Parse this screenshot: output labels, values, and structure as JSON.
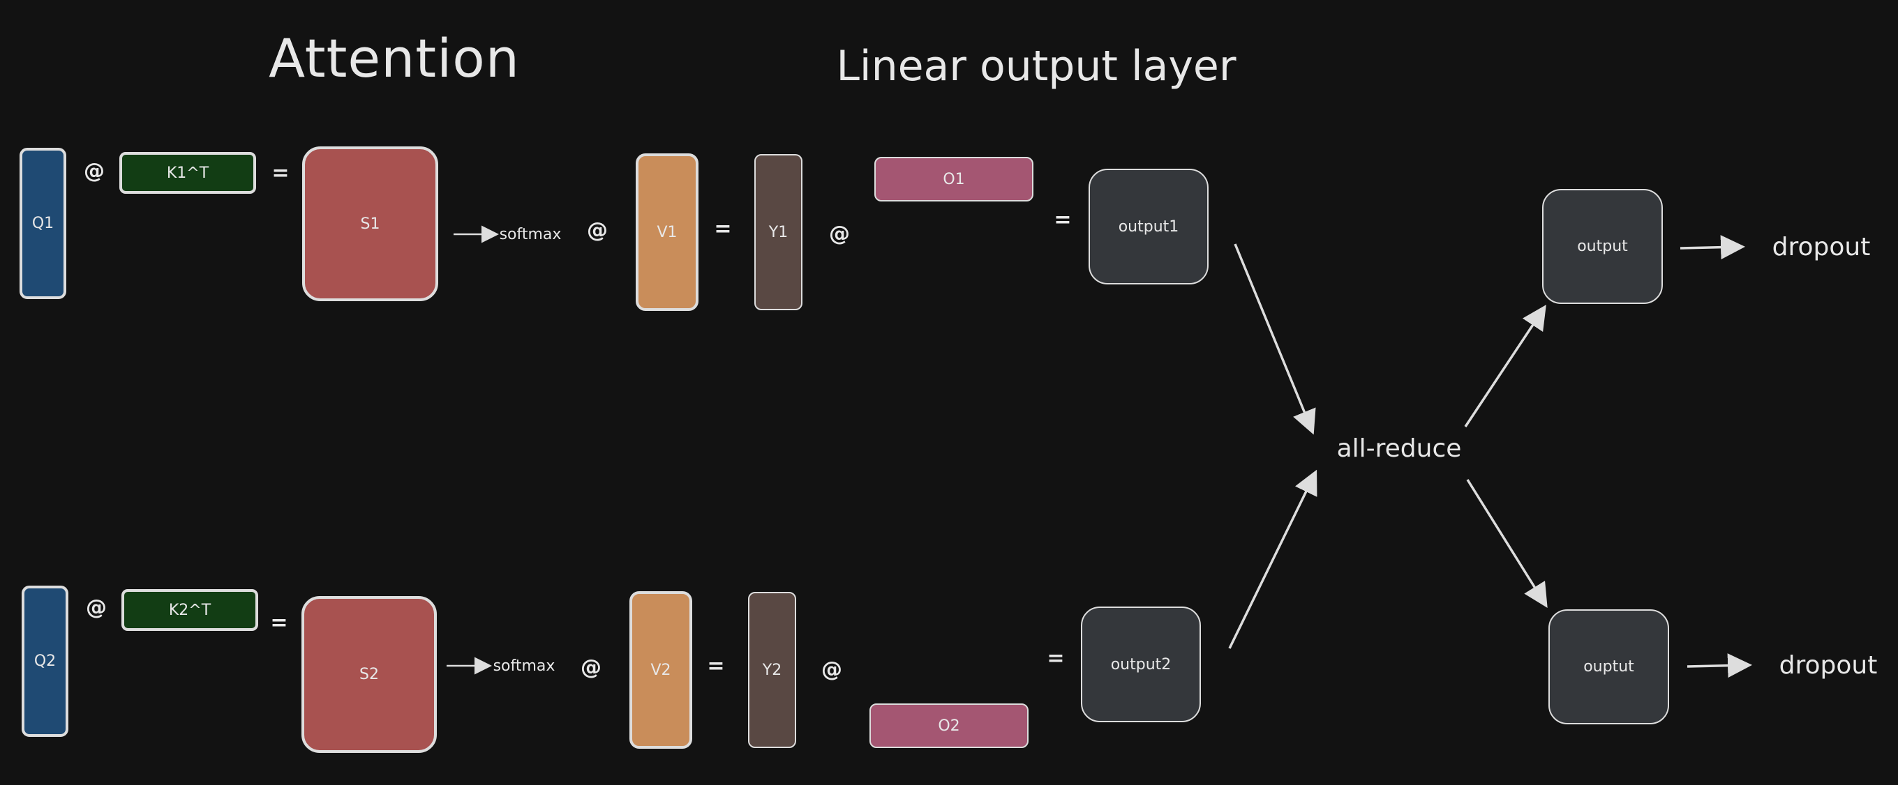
{
  "titles": {
    "attention": "Attention",
    "linear": "Linear output layer"
  },
  "colors": {
    "background": "#121212",
    "query": "#1f4a73",
    "key": "#123d14",
    "score": "#a85250",
    "value": "#c98d5a",
    "y": "#594843",
    "output_proj": "#a45672",
    "output": "#34373b",
    "stroke": "#dddddd"
  },
  "labels": {
    "q1": "Q1",
    "k1": "K1^T",
    "s1": "S1",
    "v1": "V1",
    "y1": "Y1",
    "o1": "O1",
    "output1": "output1",
    "q2": "Q2",
    "k2": "K2^T",
    "s2": "S2",
    "v2": "V2",
    "y2": "Y2",
    "o2": "O2",
    "output2": "output2",
    "softmax": "softmax",
    "matmul": "@",
    "equals": "=",
    "all_reduce": "all-reduce",
    "output_top": "output",
    "output_bottom": "ouptut",
    "dropout": "dropout"
  }
}
